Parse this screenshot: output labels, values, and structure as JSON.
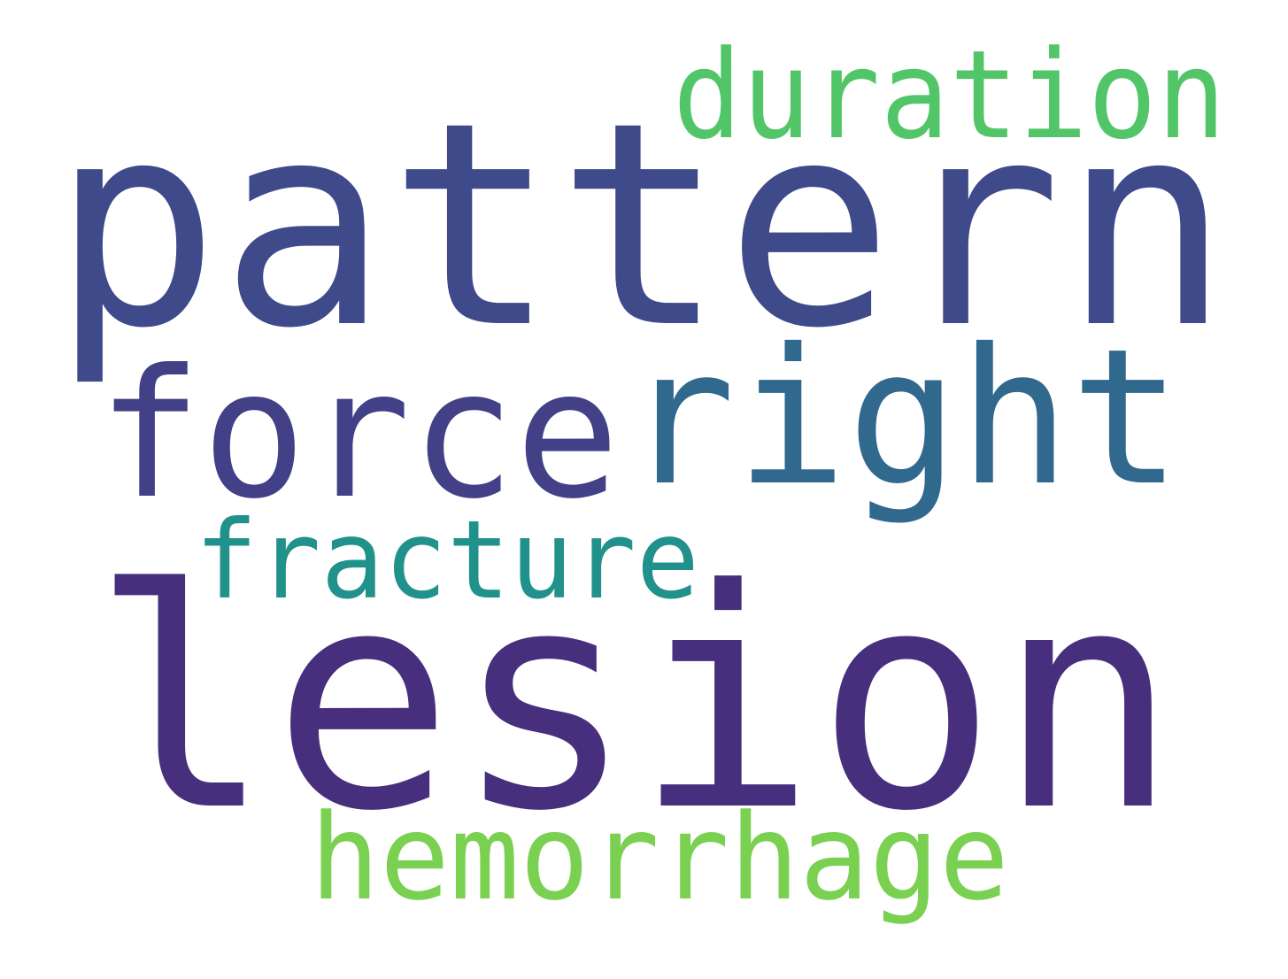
{
  "words": [
    {
      "text": "duration",
      "color": "#52c569"
    },
    {
      "text": "pattern",
      "color": "#3e4a89"
    },
    {
      "text": "force",
      "color": "#424086"
    },
    {
      "text": "right",
      "color": "#31688e"
    },
    {
      "text": "fracture",
      "color": "#21918c"
    },
    {
      "text": "lesion",
      "color": "#472f7d"
    },
    {
      "text": "hemorrhage",
      "color": "#7ad151"
    }
  ]
}
